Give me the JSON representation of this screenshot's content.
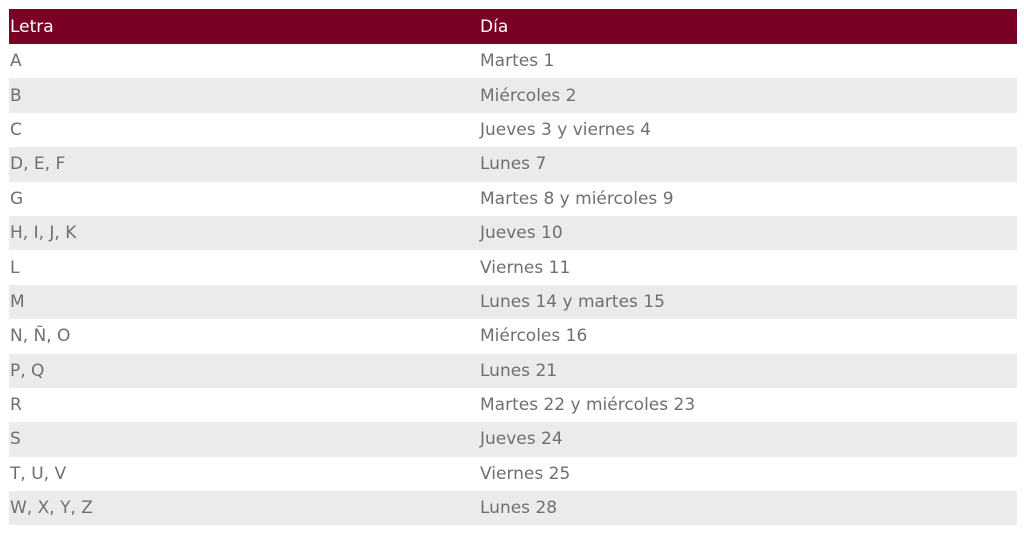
{
  "table": {
    "headers": [
      "Letra",
      "Día"
    ],
    "rows": [
      {
        "letra": "A",
        "dia": "Martes 1"
      },
      {
        "letra": "B",
        "dia": "Miércoles 2"
      },
      {
        "letra": "C",
        "dia": "Jueves 3 y viernes 4"
      },
      {
        "letra": "D, E, F",
        "dia": "Lunes 7"
      },
      {
        "letra": "G",
        "dia": "Martes 8 y miércoles 9"
      },
      {
        "letra": "H, I, J, K",
        "dia": "Jueves 10"
      },
      {
        "letra": "L",
        "dia": "Viernes 11"
      },
      {
        "letra": "M",
        "dia": "Lunes 14 y martes 15"
      },
      {
        "letra": "N, Ñ, O",
        "dia": "Miércoles 16"
      },
      {
        "letra": "P, Q",
        "dia": "Lunes 21"
      },
      {
        "letra": "R",
        "dia": "Martes 22 y miércoles 23"
      },
      {
        "letra": "S",
        "dia": "Jueves 24"
      },
      {
        "letra": "T, U, V",
        "dia": "Viernes 25"
      },
      {
        "letra": "W, X, Y, Z",
        "dia": "Lunes 28"
      }
    ]
  },
  "colors": {
    "header_bg": "#7a0026",
    "header_text": "#ffffff",
    "stripe_bg": "#ecebea",
    "body_text": "#6f6f6f"
  }
}
